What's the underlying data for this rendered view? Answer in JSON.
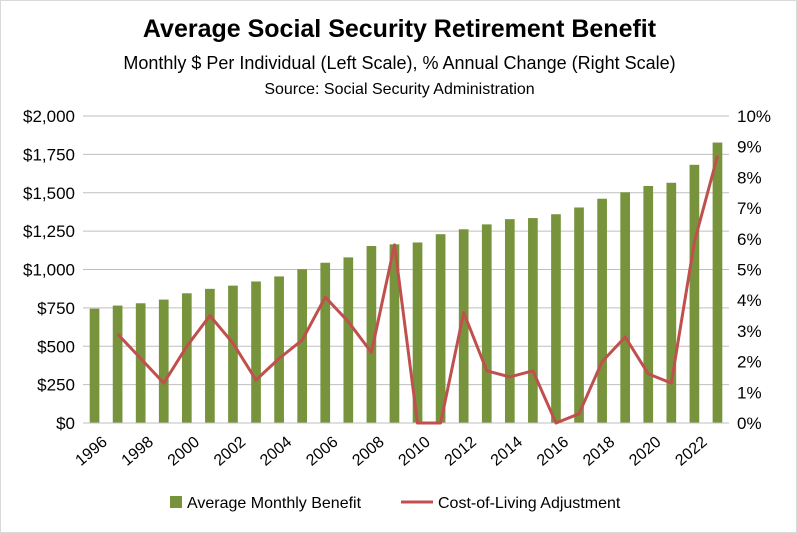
{
  "chart_data": {
    "type": "bar",
    "title": "Average Social Security Retirement Benefit",
    "subtitle": "Monthly $ Per Individual (Left Scale), % Annual Change (Right Scale)",
    "source": "Source:  Social Security Administration",
    "x": [
      1996,
      1997,
      1998,
      1999,
      2000,
      2001,
      2002,
      2003,
      2004,
      2005,
      2006,
      2007,
      2008,
      2009,
      2010,
      2011,
      2012,
      2013,
      2014,
      2015,
      2016,
      2017,
      2018,
      2019,
      2020,
      2021,
      2022,
      2023
    ],
    "x_tick_labels": [
      "1996",
      "1998",
      "2000",
      "2002",
      "2004",
      "2006",
      "2008",
      "2010",
      "2012",
      "2014",
      "2016",
      "2018",
      "2020",
      "2022"
    ],
    "series": [
      {
        "name": "Average Monthly Benefit",
        "type": "bar",
        "axis": "left",
        "color": "#77933c",
        "values": [
          745,
          765,
          780,
          804,
          845,
          874,
          895,
          922,
          955,
          1002,
          1044,
          1079,
          1153,
          1164,
          1176,
          1230,
          1262,
          1294,
          1328,
          1335,
          1360,
          1404,
          1461,
          1503,
          1544,
          1565,
          1682,
          1827
        ]
      },
      {
        "name": "Cost-of-Living Adjustment",
        "type": "line",
        "axis": "right",
        "color": "#c0504d",
        "values": [
          null,
          2.9,
          2.1,
          1.3,
          2.5,
          3.5,
          2.6,
          1.4,
          2.1,
          2.7,
          4.1,
          3.3,
          2.3,
          5.8,
          0.0,
          0.0,
          3.6,
          1.7,
          1.5,
          1.7,
          0.0,
          0.3,
          2.0,
          2.8,
          1.6,
          1.3,
          5.9,
          8.7
        ]
      }
    ],
    "y_left": {
      "ylim": [
        0,
        2000
      ],
      "ticks": [
        "$0",
        "$250",
        "$500",
        "$750",
        "$1,000",
        "$1,250",
        "$1,500",
        "$1,750",
        "$2,000"
      ]
    },
    "y_right": {
      "ylim": [
        0,
        10
      ],
      "ticks": [
        "0%",
        "1%",
        "2%",
        "3%",
        "4%",
        "5%",
        "6%",
        "7%",
        "8%",
        "9%",
        "10%"
      ]
    },
    "grid": true,
    "legend": "bottom"
  }
}
